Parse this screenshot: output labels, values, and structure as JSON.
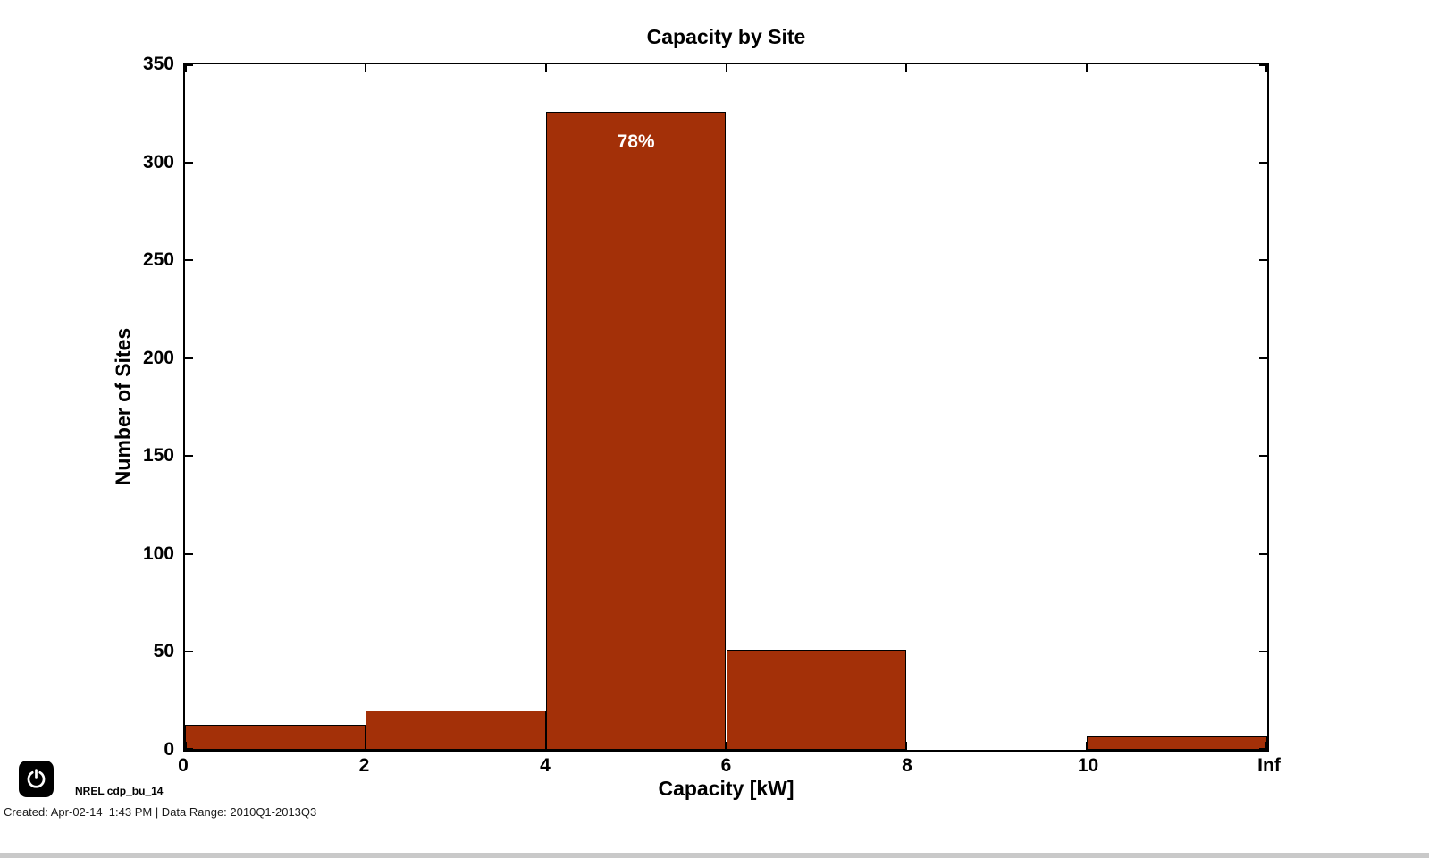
{
  "chart_data": {
    "type": "bar",
    "title": "Capacity by Site",
    "xlabel": "Capacity [kW]",
    "ylabel": "Number of Sites",
    "x_tick_labels": [
      "0",
      "2",
      "4",
      "6",
      "8",
      "10",
      "Inf"
    ],
    "y_ticks": [
      0,
      50,
      100,
      150,
      200,
      250,
      300,
      350
    ],
    "ylim": [
      0,
      350
    ],
    "bin_edges_kw": [
      "0",
      "2",
      "4",
      "6",
      "8",
      "10",
      "Inf"
    ],
    "values": [
      13,
      20,
      326,
      51,
      0,
      7
    ],
    "bar_label": {
      "text": "78%",
      "bin_index": 2
    },
    "bar_color": "#A33008",
    "bar_edge_color": "#000000",
    "grid": false,
    "legend": "none"
  },
  "footer": {
    "watermark": "NREL cdp_bu_14",
    "created_line": "Created: Apr-02-14  1:43 PM | Data Range: 2010Q1-2013Q3"
  },
  "icons": {
    "power_icon": "power-icon"
  }
}
